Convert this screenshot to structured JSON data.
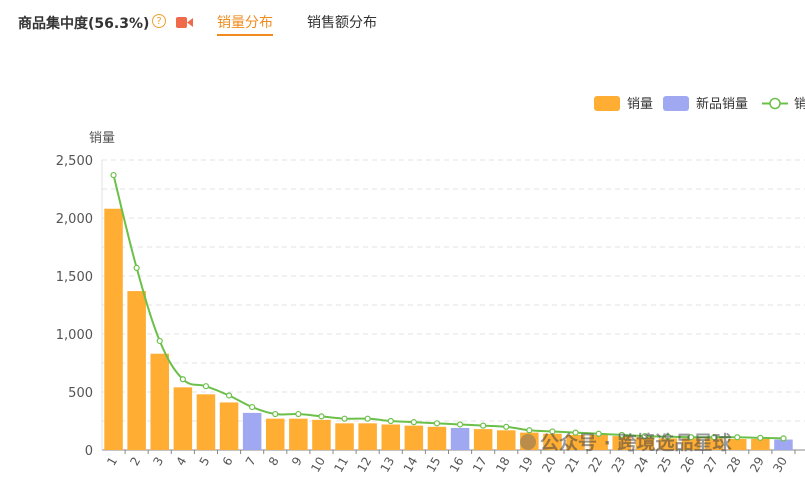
{
  "header": {
    "title": "商品集中度(56.3%)",
    "help_icon": "question-circle-icon",
    "video_icon": "video-camera-icon",
    "tabs": [
      {
        "label": "销量分布",
        "active": true
      },
      {
        "label": "销售额分布",
        "active": false
      }
    ]
  },
  "colors": {
    "accent": "#f08c1e",
    "bar_existing": "#ffad33",
    "bar_new": "#9fa8f0",
    "line": "#6cc04a"
  },
  "watermark": "公众号 · 跨境选品星球",
  "chart_data": {
    "type": "bar",
    "ylabel": "销量",
    "ylim": [
      0,
      2500
    ],
    "yticks": [
      0,
      500,
      1000,
      1500,
      2000,
      2500
    ],
    "ytick_labels": [
      "0",
      "500",
      "1,000",
      "1,500",
      "2,000",
      "2,500"
    ],
    "grid": true,
    "legend_position": "top-right",
    "categories": [
      "1",
      "2",
      "3",
      "4",
      "5",
      "6",
      "7",
      "8",
      "9",
      "10",
      "11",
      "12",
      "13",
      "14",
      "15",
      "16",
      "17",
      "18",
      "19",
      "20",
      "21",
      "22",
      "23",
      "24",
      "25",
      "26",
      "27",
      "28",
      "29",
      "30"
    ],
    "series": [
      {
        "name": "销量",
        "kind": "bar",
        "values": [
          2080,
          1370,
          830,
          540,
          480,
          410,
          320,
          270,
          270,
          260,
          230,
          230,
          220,
          210,
          200,
          190,
          180,
          170,
          150,
          140,
          130,
          130,
          120,
          110,
          100,
          100,
          100,
          95,
          95,
          90
        ],
        "new_product_flags": [
          false,
          false,
          false,
          false,
          false,
          false,
          true,
          false,
          false,
          false,
          false,
          false,
          false,
          false,
          false,
          true,
          false,
          false,
          false,
          false,
          false,
          false,
          false,
          false,
          false,
          false,
          false,
          false,
          false,
          true
        ]
      },
      {
        "name": "新品销量",
        "kind": "bar-legend"
      },
      {
        "name": "销",
        "kind": "line",
        "values": [
          2370,
          1570,
          940,
          610,
          550,
          470,
          370,
          310,
          310,
          290,
          270,
          270,
          250,
          240,
          230,
          220,
          210,
          200,
          170,
          160,
          150,
          140,
          130,
          120,
          115,
          110,
          110,
          110,
          105,
          100
        ]
      }
    ]
  }
}
